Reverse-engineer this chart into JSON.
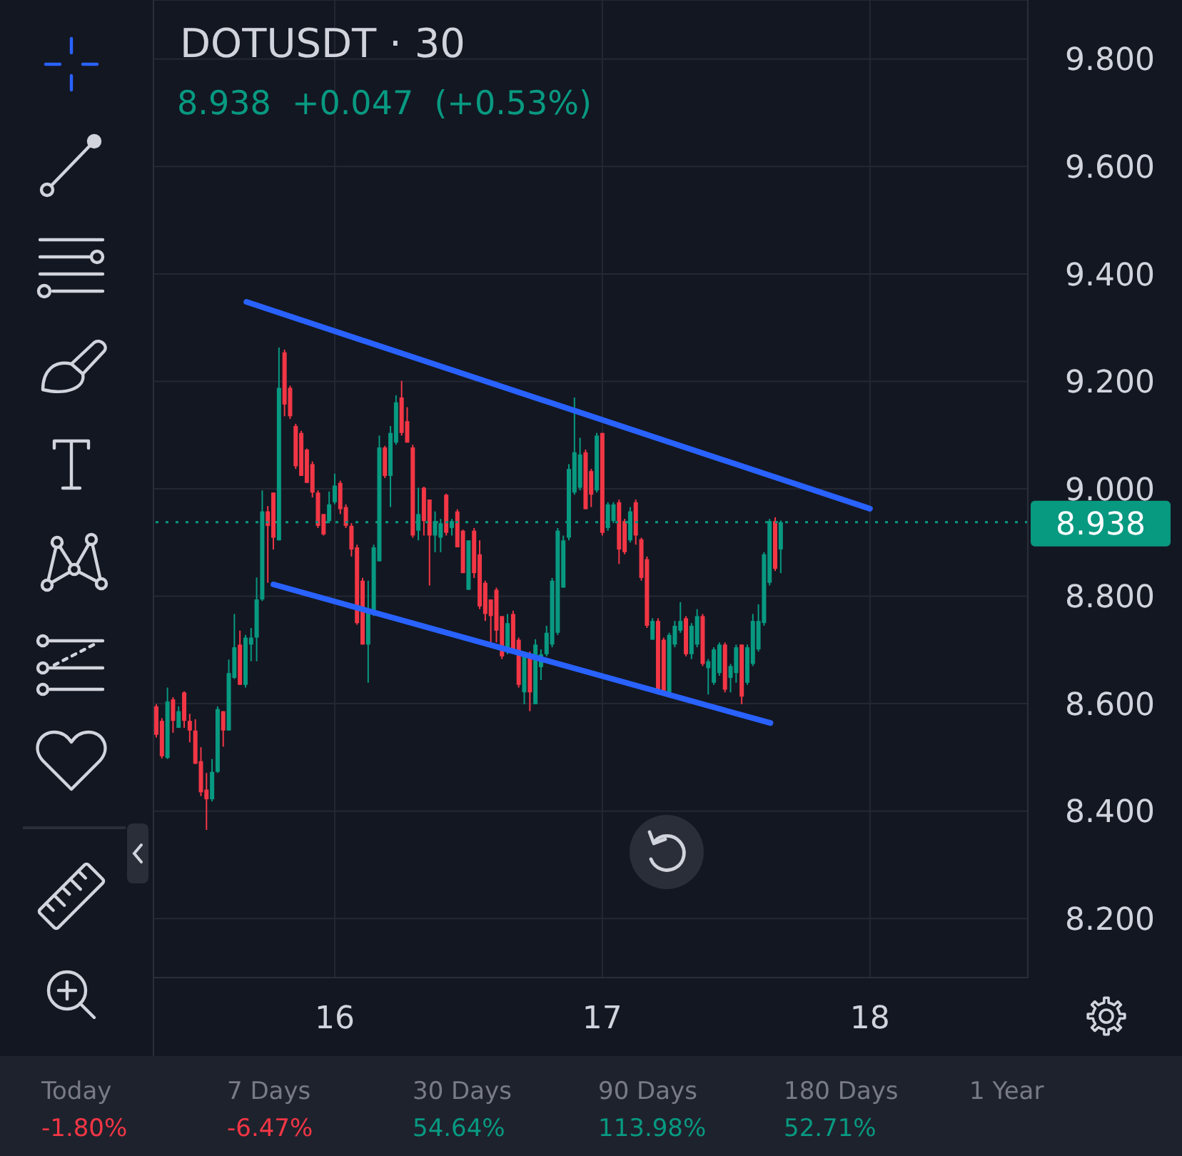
{
  "chart_data": {
    "type": "candlestick",
    "title": "DOTUSDT · 30",
    "subtitle": "8.938  +0.047  (+0.53%)",
    "x": [
      15.3333,
      15.3542,
      15.375,
      15.3958,
      15.4167,
      15.4375,
      15.4583,
      15.4792,
      15.5,
      15.5208,
      15.5417,
      15.5625,
      15.5833,
      15.6042,
      15.625,
      15.6458,
      15.6667,
      15.6875,
      15.7083,
      15.7292,
      15.75,
      15.7708,
      15.7917,
      15.8125,
      15.8333,
      15.8542,
      15.875,
      15.8958,
      15.9167,
      15.9375,
      15.9583,
      15.9792,
      16,
      16.0208,
      16.0417,
      16.0625,
      16.0833,
      16.1042,
      16.125,
      16.1458,
      16.1667,
      16.1875,
      16.2083,
      16.2292,
      16.25,
      16.2708,
      16.2917,
      16.3125,
      16.3333,
      16.3542,
      16.375,
      16.3958,
      16.4167,
      16.4375,
      16.4583,
      16.4792,
      16.5,
      16.5208,
      16.5417,
      16.5625,
      16.5833,
      16.6042,
      16.625,
      16.6458,
      16.6667,
      16.6875,
      16.7083,
      16.7292,
      16.75,
      16.7708,
      16.7917,
      16.8125,
      16.8333,
      16.8542,
      16.875,
      16.8958,
      16.9167,
      16.9375,
      16.9583,
      16.9792,
      17,
      17.0208,
      17.0417,
      17.0625,
      17.0833,
      17.1042,
      17.125,
      17.1458,
      17.1667,
      17.1875,
      17.2083,
      17.2292,
      17.25,
      17.2708,
      17.2917,
      17.3125,
      17.3333,
      17.3542,
      17.375,
      17.3958,
      17.4167,
      17.4375,
      17.4583,
      17.4792,
      17.5,
      17.5208,
      17.5417,
      17.5625,
      17.5833,
      17.6042,
      17.625,
      17.6458,
      17.6667
    ],
    "ohlc": [
      [
        8.595,
        8.599,
        8.537,
        8.542
      ],
      [
        8.568,
        8.573,
        8.498,
        8.502
      ],
      [
        8.499,
        8.63,
        8.497,
        8.604
      ],
      [
        8.608,
        8.612,
        8.546,
        8.568
      ],
      [
        8.555,
        8.595,
        8.555,
        8.586
      ],
      [
        8.621,
        8.623,
        8.555,
        8.568
      ],
      [
        8.568,
        8.581,
        8.528,
        8.55
      ],
      [
        8.55,
        8.571,
        8.488,
        8.488
      ],
      [
        8.493,
        8.519,
        8.428,
        8.435
      ],
      [
        8.44,
        8.471,
        8.365,
        8.422
      ],
      [
        8.422,
        8.497,
        8.418,
        8.473
      ],
      [
        8.473,
        8.595,
        8.471,
        8.59
      ],
      [
        8.586,
        8.586,
        8.52,
        8.55
      ],
      [
        8.55,
        8.682,
        8.55,
        8.657
      ],
      [
        8.648,
        8.767,
        8.646,
        8.705
      ],
      [
        8.71,
        8.736,
        8.635,
        8.635
      ],
      [
        8.635,
        8.728,
        8.63,
        8.723
      ],
      [
        8.71,
        8.741,
        8.679,
        8.723
      ],
      [
        8.723,
        8.835,
        8.679,
        8.794
      ],
      [
        8.794,
        8.997,
        8.791,
        8.958
      ],
      [
        8.958,
        8.968,
        8.825,
        8.931
      ],
      [
        8.993,
        8.993,
        8.887,
        8.909
      ],
      [
        8.904,
        9.263,
        8.904,
        9.188
      ],
      [
        9.254,
        9.259,
        9.135,
        9.157
      ],
      [
        9.188,
        9.192,
        9.13,
        9.135
      ],
      [
        9.117,
        9.121,
        9.037,
        9.042
      ],
      [
        9.104,
        9.108,
        9.024,
        9.024
      ],
      [
        9.073,
        9.075,
        9.011,
        9.011
      ],
      [
        9.046,
        9.051,
        8.984,
        8.993
      ],
      [
        8.993,
        8.997,
        8.927,
        8.931
      ],
      [
        8.953,
        8.953,
        8.913,
        8.915
      ],
      [
        8.94,
        8.995,
        8.936,
        8.971
      ],
      [
        8.975,
        9.028,
        8.971,
        9.006
      ],
      [
        9.011,
        9.015,
        8.953,
        8.962
      ],
      [
        8.966,
        8.971,
        8.927,
        8.931
      ],
      [
        8.931,
        8.936,
        8.874,
        8.887
      ],
      [
        8.891,
        8.896,
        8.747,
        8.75
      ],
      [
        8.829,
        8.834,
        8.71,
        8.71
      ],
      [
        8.71,
        8.829,
        8.639,
        8.776
      ],
      [
        8.767,
        8.896,
        8.763,
        8.891
      ],
      [
        8.865,
        9.099,
        8.865,
        9.077
      ],
      [
        9.077,
        9.08,
        9.02,
        9.024
      ],
      [
        9.024,
        9.117,
        8.966,
        9.104
      ],
      [
        9.086,
        9.174,
        9.082,
        9.161
      ],
      [
        9.17,
        9.201,
        9.099,
        9.104
      ],
      [
        9.126,
        9.152,
        9.086,
        9.086
      ],
      [
        9.077,
        9.082,
        8.909,
        8.913
      ],
      [
        8.922,
        9.002,
        8.904,
        8.953
      ],
      [
        9.002,
        9.004,
        8.913,
        8.94
      ],
      [
        8.98,
        8.98,
        8.82,
        8.913
      ],
      [
        8.913,
        8.958,
        8.882,
        8.94
      ],
      [
        8.909,
        8.944,
        8.882,
        8.936
      ],
      [
        8.989,
        8.991,
        8.913,
        8.918
      ],
      [
        8.927,
        8.944,
        8.913,
        8.94
      ],
      [
        8.958,
        8.962,
        8.891,
        8.891
      ],
      [
        8.922,
        8.924,
        8.843,
        8.843
      ],
      [
        8.812,
        8.904,
        8.812,
        8.904
      ],
      [
        8.922,
        8.927,
        8.834,
        8.843
      ],
      [
        8.878,
        8.904,
        8.776,
        8.781
      ],
      [
        8.825,
        8.829,
        8.754,
        8.767
      ],
      [
        8.794,
        8.794,
        8.714,
        8.763
      ],
      [
        8.812,
        8.816,
        8.714,
        8.736
      ],
      [
        8.763,
        8.763,
        8.683,
        8.688
      ],
      [
        8.697,
        8.767,
        8.692,
        8.75
      ],
      [
        8.767,
        8.773,
        8.697,
        8.701
      ],
      [
        8.719,
        8.723,
        8.63,
        8.635
      ],
      [
        8.621,
        8.697,
        8.599,
        8.692
      ],
      [
        8.692,
        8.697,
        8.586,
        8.621
      ],
      [
        8.599,
        8.72,
        8.599,
        8.71
      ],
      [
        8.668,
        8.701,
        8.644,
        8.692
      ],
      [
        8.692,
        8.745,
        8.688,
        8.732
      ],
      [
        8.71,
        8.834,
        8.705,
        8.829
      ],
      [
        8.732,
        8.927,
        8.728,
        8.922
      ],
      [
        8.816,
        8.913,
        8.816,
        8.904
      ],
      [
        8.909,
        9.046,
        8.904,
        9.037
      ],
      [
        8.993,
        9.17,
        8.989,
        9.068
      ],
      [
        9.002,
        9.095,
        8.997,
        9.064
      ],
      [
        9.068,
        9.073,
        8.962,
        8.962
      ],
      [
        9.033,
        9.037,
        8.966,
        8.989
      ],
      [
        8.997,
        9.104,
        8.993,
        9.099
      ],
      [
        9.104,
        9.104,
        8.913,
        8.918
      ],
      [
        8.927,
        8.975,
        8.922,
        8.971
      ],
      [
        8.94,
        8.975,
        8.936,
        8.971
      ],
      [
        8.975,
        8.98,
        8.86,
        8.887
      ],
      [
        8.94,
        8.944,
        8.878,
        8.882
      ],
      [
        8.904,
        8.966,
        8.9,
        8.958
      ],
      [
        8.975,
        8.98,
        8.896,
        8.913
      ],
      [
        8.906,
        8.909,
        8.829,
        8.834
      ],
      [
        8.869,
        8.874,
        8.741,
        8.745
      ],
      [
        8.719,
        8.759,
        8.719,
        8.754
      ],
      [
        8.754,
        8.759,
        8.617,
        8.621
      ],
      [
        8.719,
        8.723,
        8.617,
        8.621
      ],
      [
        8.621,
        8.732,
        8.617,
        8.728
      ],
      [
        8.71,
        8.754,
        8.705,
        8.745
      ],
      [
        8.736,
        8.789,
        8.732,
        8.754
      ],
      [
        8.759,
        8.763,
        8.688,
        8.692
      ],
      [
        8.692,
        8.75,
        8.683,
        8.745
      ],
      [
        8.71,
        8.776,
        8.705,
        8.763
      ],
      [
        8.763,
        8.767,
        8.67,
        8.674
      ],
      [
        8.666,
        8.683,
        8.617,
        8.679
      ],
      [
        8.639,
        8.705,
        8.635,
        8.701
      ],
      [
        8.657,
        8.714,
        8.652,
        8.71
      ],
      [
        8.71,
        8.714,
        8.621,
        8.626
      ],
      [
        8.648,
        8.674,
        8.621,
        8.67
      ],
      [
        8.657,
        8.71,
        8.639,
        8.705
      ],
      [
        8.71,
        8.71,
        8.599,
        8.613
      ],
      [
        8.639,
        8.71,
        8.635,
        8.705
      ],
      [
        8.674,
        8.767,
        8.67,
        8.754
      ],
      [
        8.701,
        8.785,
        8.697,
        8.754
      ],
      [
        8.75,
        8.882,
        8.745,
        8.878
      ],
      [
        8.825,
        8.944,
        8.82,
        8.94
      ],
      [
        8.94,
        8.947,
        8.847,
        8.851
      ],
      [
        8.887,
        8.941,
        8.843,
        8.938
      ]
    ],
    "colors": [
      "#f23645",
      "#f23645",
      "#089981",
      "#f23645",
      "#089981",
      "#f23645",
      "#f23645",
      "#f23645",
      "#f23645",
      "#f23645",
      "#089981",
      "#089981",
      "#f23645",
      "#089981",
      "#089981",
      "#f23645",
      "#089981",
      "#089981",
      "#089981",
      "#089981",
      "#f23645",
      "#f23645",
      "#089981",
      "#f23645",
      "#f23645",
      "#f23645",
      "#f23645",
      "#f23645",
      "#f23645",
      "#f23645",
      "#f23645",
      "#089981",
      "#089981",
      "#f23645",
      "#f23645",
      "#f23645",
      "#f23645",
      "#f23645",
      "#089981",
      "#089981",
      "#089981",
      "#f23645",
      "#089981",
      "#089981",
      "#f23645",
      "#f23645",
      "#f23645",
      "#089981",
      "#f23645",
      "#f23645",
      "#089981",
      "#089981",
      "#f23645",
      "#089981",
      "#f23645",
      "#f23645",
      "#089981",
      "#f23645",
      "#f23645",
      "#f23645",
      "#f23645",
      "#f23645",
      "#f23645",
      "#089981",
      "#f23645",
      "#f23645",
      "#089981",
      "#f23645",
      "#089981",
      "#089981",
      "#089981",
      "#089981",
      "#089981",
      "#089981",
      "#089981",
      "#089981",
      "#089981",
      "#f23645",
      "#f23645",
      "#089981",
      "#f23645",
      "#089981",
      "#089981",
      "#f23645",
      "#f23645",
      "#089981",
      "#f23645",
      "#f23645",
      "#f23645",
      "#089981",
      "#f23645",
      "#f23645",
      "#089981",
      "#089981",
      "#089981",
      "#f23645",
      "#089981",
      "#089981",
      "#f23645",
      "#089981",
      "#089981",
      "#089981",
      "#f23645",
      "#089981",
      "#089981",
      "#f23645",
      "#089981",
      "#089981",
      "#089981",
      "#089981",
      "#089981",
      "#f23645",
      "#089981"
    ],
    "series": [
      {
        "type": "line",
        "x": [
          15.67,
          18.0
        ],
        "values": [
          9.348,
          8.963
        ],
        "color": "#2962ff"
      },
      {
        "type": "line",
        "x": [
          15.771,
          17.628
        ],
        "values": [
          8.822,
          8.564
        ],
        "color": "#2962ff"
      }
    ],
    "xlim": [
      15.32,
      18.59
    ],
    "xticks": [
      16,
      17,
      18
    ],
    "ylim": [
      8.09,
      9.91
    ],
    "yticks": [
      {
        "value": 8.2,
        "label": "8.200"
      },
      {
        "value": 8.4,
        "label": "8.400"
      },
      {
        "value": 8.6,
        "label": "8.600"
      },
      {
        "value": 8.8,
        "label": "8.800"
      },
      {
        "value": 9.0,
        "label": "9.000"
      },
      {
        "value": 9.2,
        "label": "9.200"
      },
      {
        "value": 9.4,
        "label": "9.400"
      },
      {
        "value": 9.6,
        "label": "9.600"
      },
      {
        "value": 9.8,
        "label": "9.800"
      }
    ],
    "grid": true,
    "ref_lines": [
      {
        "axis": "y",
        "value": 8.938,
        "label": "8.938",
        "color": "#089981",
        "line_style": "dotted"
      }
    ],
    "annotations": [
      "Today",
      "-1.80%",
      "7 Days",
      "-6.47%",
      "30 Days",
      "54.64%",
      "90 Days",
      "113.98%",
      "180 Days",
      "52.71%",
      "1 Year"
    ]
  }
}
